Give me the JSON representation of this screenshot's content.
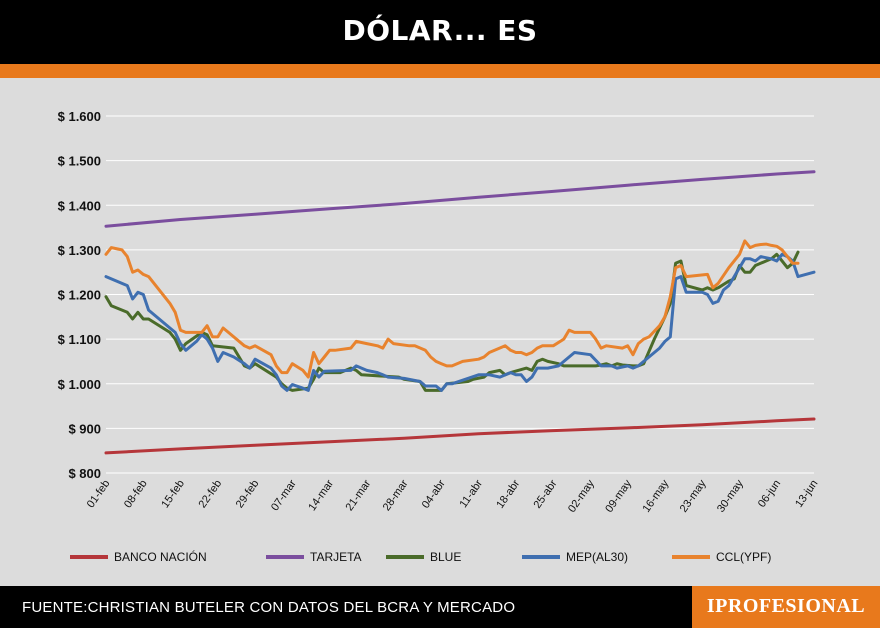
{
  "header": {
    "title": "DÓLAR... ES"
  },
  "footer": {
    "source": "FUENTE:CHRISTIAN BUTELER CON DATOS DEL BCRA Y MERCADO",
    "brand": "IPROFESIONAL"
  },
  "colors": {
    "accent": "#E8791C",
    "panel": "#DCDCDC"
  },
  "chart_data": {
    "type": "line",
    "title": "DÓLAR... ES",
    "ylim": [
      800,
      1600
    ],
    "yticks": [
      800,
      900,
      1000,
      1100,
      1200,
      1300,
      1400,
      1500,
      1600
    ],
    "ytick_labels": [
      "$ 800",
      "$ 900",
      "$ 1.000",
      "$ 1.100",
      "$ 1.200",
      "$ 1.300",
      "$ 1.400",
      "$ 1.500",
      "$ 1.600"
    ],
    "grid": "horizontal",
    "legend_position": "bottom",
    "x_range": [
      "01-feb",
      "13-jun"
    ],
    "x_ticks": [
      {
        "label": "01-feb",
        "day": 0
      },
      {
        "label": "08-feb",
        "day": 7
      },
      {
        "label": "15-feb",
        "day": 14
      },
      {
        "label": "22-feb",
        "day": 21
      },
      {
        "label": "29-feb",
        "day": 28
      },
      {
        "label": "07-mar",
        "day": 35
      },
      {
        "label": "14-mar",
        "day": 42
      },
      {
        "label": "21-mar",
        "day": 49
      },
      {
        "label": "28-mar",
        "day": 56
      },
      {
        "label": "04-abr",
        "day": 63
      },
      {
        "label": "11-abr",
        "day": 70
      },
      {
        "label": "18-abr",
        "day": 77
      },
      {
        "label": "25-abr",
        "day": 84
      },
      {
        "label": "02-may",
        "day": 91
      },
      {
        "label": "09-may",
        "day": 98
      },
      {
        "label": "16-may",
        "day": 105
      },
      {
        "label": "23-may",
        "day": 112
      },
      {
        "label": "30-may",
        "day": 119
      },
      {
        "label": "06-jun",
        "day": 126
      },
      {
        "label": "13-jun",
        "day": 133
      }
    ],
    "series": [
      {
        "name": "BANCO NACIÓN",
        "color": "#B5363A",
        "points": [
          [
            0,
            845
          ],
          [
            14,
            854
          ],
          [
            28,
            862
          ],
          [
            42,
            870
          ],
          [
            56,
            878
          ],
          [
            70,
            888
          ],
          [
            84,
            895
          ],
          [
            98,
            901
          ],
          [
            112,
            908
          ],
          [
            126,
            917
          ],
          [
            133,
            921
          ]
        ]
      },
      {
        "name": "TARJETA",
        "color": "#7B4E9E",
        "points": [
          [
            0,
            1353
          ],
          [
            14,
            1368
          ],
          [
            28,
            1380
          ],
          [
            42,
            1392
          ],
          [
            56,
            1404
          ],
          [
            70,
            1418
          ],
          [
            84,
            1431
          ],
          [
            98,
            1445
          ],
          [
            112,
            1458
          ],
          [
            126,
            1470
          ],
          [
            133,
            1475
          ]
        ]
      },
      {
        "name": "BLUE",
        "color": "#4A6B2A",
        "points": [
          [
            0,
            1195
          ],
          [
            1,
            1175
          ],
          [
            4,
            1160
          ],
          [
            5,
            1145
          ],
          [
            6,
            1160
          ],
          [
            7,
            1145
          ],
          [
            8,
            1145
          ],
          [
            12,
            1115
          ],
          [
            13,
            1100
          ],
          [
            14,
            1075
          ],
          [
            15,
            1090
          ],
          [
            18,
            1115
          ],
          [
            19,
            1110
          ],
          [
            20,
            1085
          ],
          [
            24,
            1080
          ],
          [
            25,
            1060
          ],
          [
            26,
            1040
          ],
          [
            27,
            1035
          ],
          [
            28,
            1045
          ],
          [
            32,
            1015
          ],
          [
            33,
            1000
          ],
          [
            34,
            990
          ],
          [
            35,
            985
          ],
          [
            38,
            990
          ],
          [
            39,
            1010
          ],
          [
            40,
            1035
          ],
          [
            41,
            1025
          ],
          [
            44,
            1025
          ],
          [
            45,
            1030
          ],
          [
            46,
            1035
          ],
          [
            47,
            1030
          ],
          [
            48,
            1020
          ],
          [
            55,
            1015
          ],
          [
            56,
            1010
          ],
          [
            59,
            1005
          ],
          [
            60,
            985
          ],
          [
            63,
            985
          ],
          [
            64,
            1000
          ],
          [
            68,
            1005
          ],
          [
            69,
            1010
          ],
          [
            71,
            1015
          ],
          [
            72,
            1025
          ],
          [
            74,
            1030
          ],
          [
            75,
            1020
          ],
          [
            76,
            1025
          ],
          [
            79,
            1035
          ],
          [
            80,
            1030
          ],
          [
            81,
            1050
          ],
          [
            82,
            1055
          ],
          [
            83,
            1050
          ],
          [
            85,
            1045
          ],
          [
            86,
            1040
          ],
          [
            92,
            1040
          ],
          [
            93,
            1042
          ],
          [
            94,
            1045
          ],
          [
            95,
            1040
          ],
          [
            96,
            1045
          ],
          [
            97,
            1042
          ],
          [
            99,
            1040
          ],
          [
            100,
            1040
          ],
          [
            101,
            1045
          ],
          [
            103,
            1100
          ],
          [
            105,
            1150
          ],
          [
            106,
            1180
          ],
          [
            107,
            1270
          ],
          [
            108,
            1275
          ],
          [
            109,
            1220
          ],
          [
            112,
            1210
          ],
          [
            113,
            1215
          ],
          [
            114,
            1210
          ],
          [
            115,
            1215
          ],
          [
            117,
            1230
          ],
          [
            118,
            1235
          ],
          [
            119,
            1265
          ],
          [
            120,
            1250
          ],
          [
            121,
            1250
          ],
          [
            122,
            1265
          ],
          [
            124,
            1275
          ],
          [
            125,
            1280
          ],
          [
            126,
            1290
          ],
          [
            127,
            1275
          ],
          [
            128,
            1260
          ],
          [
            129,
            1270
          ],
          [
            130,
            1295
          ]
        ]
      },
      {
        "name": "MEP(AL30)",
        "color": "#3F6FB0",
        "points": [
          [
            0,
            1240
          ],
          [
            4,
            1220
          ],
          [
            5,
            1190
          ],
          [
            6,
            1205
          ],
          [
            7,
            1200
          ],
          [
            8,
            1165
          ],
          [
            12,
            1125
          ],
          [
            13,
            1115
          ],
          [
            14,
            1090
          ],
          [
            15,
            1075
          ],
          [
            17,
            1095
          ],
          [
            18,
            1110
          ],
          [
            19,
            1100
          ],
          [
            20,
            1080
          ],
          [
            21,
            1050
          ],
          [
            22,
            1070
          ],
          [
            24,
            1060
          ],
          [
            26,
            1045
          ],
          [
            27,
            1035
          ],
          [
            28,
            1055
          ],
          [
            31,
            1035
          ],
          [
            32,
            1020
          ],
          [
            33,
            995
          ],
          [
            34,
            985
          ],
          [
            35,
            998
          ],
          [
            37,
            990
          ],
          [
            38,
            985
          ],
          [
            39,
            1030
          ],
          [
            40,
            1015
          ],
          [
            41,
            1028
          ],
          [
            46,
            1030
          ],
          [
            47,
            1040
          ],
          [
            48,
            1035
          ],
          [
            49,
            1030
          ],
          [
            51,
            1025
          ],
          [
            52,
            1020
          ],
          [
            53,
            1015
          ],
          [
            56,
            1012
          ],
          [
            59,
            1005
          ],
          [
            60,
            995
          ],
          [
            62,
            995
          ],
          [
            63,
            985
          ],
          [
            64,
            1000
          ],
          [
            65,
            1000
          ],
          [
            70,
            1020
          ],
          [
            72,
            1020
          ],
          [
            74,
            1015
          ],
          [
            76,
            1025
          ],
          [
            77,
            1020
          ],
          [
            78,
            1020
          ],
          [
            79,
            1005
          ],
          [
            80,
            1015
          ],
          [
            81,
            1035
          ],
          [
            82,
            1035
          ],
          [
            83,
            1035
          ],
          [
            85,
            1040
          ],
          [
            87,
            1060
          ],
          [
            88,
            1070
          ],
          [
            91,
            1065
          ],
          [
            93,
            1040
          ],
          [
            94,
            1040
          ],
          [
            95,
            1040
          ],
          [
            96,
            1035
          ],
          [
            98,
            1040
          ],
          [
            99,
            1035
          ],
          [
            100,
            1040
          ],
          [
            104,
            1080
          ],
          [
            105,
            1095
          ],
          [
            106,
            1105
          ],
          [
            107,
            1235
          ],
          [
            108,
            1240
          ],
          [
            109,
            1205
          ],
          [
            112,
            1205
          ],
          [
            113,
            1200
          ],
          [
            114,
            1180
          ],
          [
            115,
            1185
          ],
          [
            116,
            1210
          ],
          [
            117,
            1220
          ],
          [
            118,
            1240
          ],
          [
            119,
            1260
          ],
          [
            120,
            1280
          ],
          [
            121,
            1280
          ],
          [
            122,
            1275
          ],
          [
            123,
            1285
          ],
          [
            125,
            1280
          ],
          [
            126,
            1275
          ],
          [
            127,
            1290
          ],
          [
            128,
            1285
          ],
          [
            129,
            1275
          ],
          [
            130,
            1240
          ],
          [
            133,
            1250
          ]
        ]
      },
      {
        "name": "CCL(YPF)",
        "color": "#E8832E",
        "points": [
          [
            0,
            1290
          ],
          [
            1,
            1305
          ],
          [
            3,
            1300
          ],
          [
            4,
            1285
          ],
          [
            5,
            1250
          ],
          [
            6,
            1255
          ],
          [
            7,
            1245
          ],
          [
            8,
            1240
          ],
          [
            12,
            1180
          ],
          [
            13,
            1160
          ],
          [
            14,
            1120
          ],
          [
            15,
            1115
          ],
          [
            18,
            1115
          ],
          [
            19,
            1130
          ],
          [
            20,
            1105
          ],
          [
            21,
            1105
          ],
          [
            22,
            1125
          ],
          [
            23,
            1115
          ],
          [
            26,
            1085
          ],
          [
            27,
            1080
          ],
          [
            28,
            1085
          ],
          [
            31,
            1065
          ],
          [
            32,
            1040
          ],
          [
            33,
            1025
          ],
          [
            34,
            1025
          ],
          [
            35,
            1045
          ],
          [
            37,
            1030
          ],
          [
            38,
            1015
          ],
          [
            39,
            1070
          ],
          [
            40,
            1045
          ],
          [
            41,
            1060
          ],
          [
            42,
            1075
          ],
          [
            43,
            1075
          ],
          [
            46,
            1080
          ],
          [
            47,
            1095
          ],
          [
            49,
            1090
          ],
          [
            51,
            1085
          ],
          [
            52,
            1080
          ],
          [
            53,
            1100
          ],
          [
            54,
            1090
          ],
          [
            57,
            1085
          ],
          [
            58,
            1085
          ],
          [
            60,
            1075
          ],
          [
            61,
            1060
          ],
          [
            62,
            1050
          ],
          [
            63,
            1045
          ],
          [
            64,
            1040
          ],
          [
            65,
            1040
          ],
          [
            67,
            1050
          ],
          [
            70,
            1055
          ],
          [
            71,
            1060
          ],
          [
            72,
            1070
          ],
          [
            73,
            1075
          ],
          [
            75,
            1085
          ],
          [
            76,
            1075
          ],
          [
            77,
            1070
          ],
          [
            78,
            1070
          ],
          [
            79,
            1065
          ],
          [
            80,
            1070
          ],
          [
            81,
            1080
          ],
          [
            82,
            1085
          ],
          [
            84,
            1085
          ],
          [
            86,
            1100
          ],
          [
            87,
            1120
          ],
          [
            88,
            1115
          ],
          [
            91,
            1115
          ],
          [
            92,
            1100
          ],
          [
            93,
            1080
          ],
          [
            94,
            1085
          ],
          [
            97,
            1080
          ],
          [
            98,
            1085
          ],
          [
            99,
            1065
          ],
          [
            100,
            1090
          ],
          [
            101,
            1100
          ],
          [
            102,
            1105
          ],
          [
            104,
            1130
          ],
          [
            105,
            1150
          ],
          [
            106,
            1195
          ],
          [
            107,
            1260
          ],
          [
            108,
            1265
          ],
          [
            109,
            1240
          ],
          [
            113,
            1245
          ],
          [
            114,
            1215
          ],
          [
            115,
            1225
          ],
          [
            117,
            1260
          ],
          [
            119,
            1290
          ],
          [
            120,
            1320
          ],
          [
            121,
            1305
          ],
          [
            122,
            1310
          ],
          [
            123,
            1312
          ],
          [
            124,
            1313
          ],
          [
            125,
            1310
          ],
          [
            126,
            1308
          ],
          [
            127,
            1300
          ],
          [
            128,
            1285
          ],
          [
            129,
            1270
          ],
          [
            130,
            1270
          ]
        ]
      }
    ]
  }
}
